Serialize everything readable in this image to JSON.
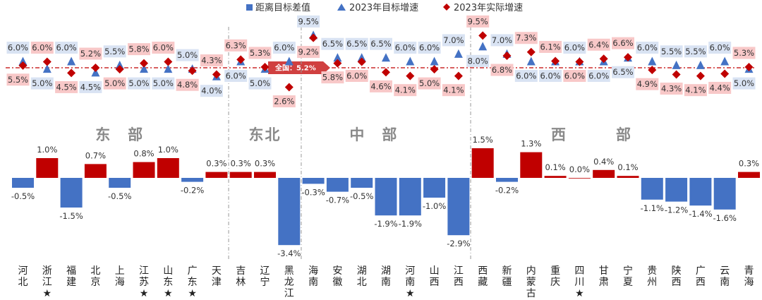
{
  "legend": {
    "diff": "距离目标差值",
    "target": "2023年目标增速",
    "actual": "2023年实际增速"
  },
  "colors": {
    "positive_bar": "#c00000",
    "negative_bar": "#4472c4",
    "target_marker": "#4472c4",
    "actual_marker": "#c00000",
    "target_label_bg": "#d9e3f3",
    "actual_label_bg": "#f8c8c8",
    "region_text": "#8a8a8a",
    "avg_line": "#c00000"
  },
  "national_avg_label": "全国：5.2%",
  "national_avg_value": 5.2,
  "regions": [
    {
      "name": "东　部",
      "from": 0,
      "to": 8
    },
    {
      "name": "东北",
      "from": 9,
      "to": 11
    },
    {
      "name": "中　部",
      "from": 12,
      "to": 17
    },
    {
      "name": "西　　　部",
      "from": 18,
      "to": 29
    }
  ],
  "chart_data": {
    "type": "bar",
    "categories": [
      "河北",
      "浙江",
      "福建",
      "北京",
      "上海",
      "江苏",
      "山东",
      "广东",
      "天津",
      "吉林",
      "辽宁",
      "黑龙江",
      "海南",
      "安徽",
      "湖北",
      "湖南",
      "河南",
      "山西",
      "江西",
      "西藏",
      "新疆",
      "内蒙古",
      "重庆",
      "四川",
      "甘肃",
      "宁夏",
      "贵州",
      "陕西",
      "广西",
      "云南",
      "青海"
    ],
    "starred": [
      false,
      true,
      false,
      false,
      false,
      true,
      true,
      true,
      false,
      false,
      false,
      false,
      false,
      false,
      false,
      false,
      true,
      false,
      false,
      false,
      false,
      false,
      false,
      true,
      false,
      false,
      false,
      false,
      false,
      false,
      false
    ],
    "series": [
      {
        "name": "距离目标差值",
        "kind": "bar",
        "values": [
          -0.5,
          1.0,
          -1.5,
          0.7,
          -0.5,
          0.8,
          1.0,
          -0.2,
          0.3,
          0.3,
          0.3,
          -3.4,
          -0.3,
          -0.7,
          -0.5,
          -1.9,
          -1.9,
          -1.0,
          -2.9,
          1.5,
          -0.2,
          1.3,
          0.1,
          0.0,
          0.4,
          0.1,
          -1.1,
          -1.2,
          -1.4,
          -1.6,
          0.3
        ]
      },
      {
        "name": "2023年目标增速",
        "kind": "triangle",
        "values": [
          6.0,
          5.0,
          6.0,
          4.5,
          5.5,
          5.0,
          5.0,
          5.0,
          4.0,
          6.0,
          5.0,
          6.0,
          9.5,
          6.5,
          6.5,
          6.5,
          6.0,
          6.0,
          7.0,
          8.0,
          7.0,
          6.0,
          6.0,
          6.0,
          6.0,
          6.5,
          6.0,
          5.5,
          5.5,
          6.0,
          5.0
        ]
      },
      {
        "name": "2023年实际增速",
        "kind": "diamond",
        "values": [
          5.5,
          6.0,
          4.5,
          5.2,
          5.0,
          5.8,
          6.0,
          4.8,
          4.3,
          6.3,
          5.3,
          2.6,
          9.2,
          5.8,
          6.0,
          4.6,
          4.1,
          5.0,
          4.1,
          9.5,
          6.8,
          7.3,
          6.1,
          6.0,
          6.4,
          6.6,
          4.9,
          4.3,
          4.1,
          4.4,
          5.3
        ]
      }
    ],
    "labels": {
      "diff": [
        "-0.5%",
        "1.0%",
        "-1.5%",
        "0.7%",
        "-0.5%",
        "0.8%",
        "1.0%",
        "-0.2%",
        "0.3%",
        "0.3%",
        "0.3%",
        "-3.4%",
        "-0.3%",
        "-0.7%",
        "-0.5%",
        "-1.9%",
        "-1.9%",
        "-1.0%",
        "-2.9%",
        "1.5%",
        "-0.2%",
        "1.3%",
        "0.1%",
        "0.0%",
        "0.4%",
        "0.1%",
        "-1.1%",
        "-1.2%",
        "-1.4%",
        "-1.6%",
        "0.3%"
      ],
      "target": [
        "6.0%",
        "5.0%",
        "6.0%",
        "4.5%",
        "5.5%",
        "5.0%",
        "5.0%",
        "5.0%",
        "4.0%",
        "6.0%",
        "5.0%",
        "6.0%",
        "9.5%",
        "6.5%",
        "6.5%",
        "6.5%",
        "6.0%",
        "6.0%",
        "7.0%",
        "8.0%",
        "7.0%",
        "6.0%",
        "6.0%",
        "6.0%",
        "6.0%",
        "6.5%",
        "6.0%",
        "5.5%",
        "5.5%",
        "6.0%",
        "5.0%"
      ],
      "actual": [
        "5.5%",
        "6.0%",
        "4.5%",
        "5.2%",
        "5.0%",
        "5.8%",
        "6.0%",
        "4.8%",
        "4.3%",
        "6.3%",
        "5.3%",
        "2.6%",
        "9.2%",
        "5.8%",
        "6.0%",
        "4.6%",
        "4.1%",
        "5.0%",
        "4.1%",
        "9.5%",
        "6.8%",
        "7.3%",
        "6.1%",
        "6.0%",
        "6.4%",
        "6.6%",
        "4.9%",
        "4.3%",
        "4.1%",
        "4.4%",
        "5.3%"
      ]
    }
  }
}
